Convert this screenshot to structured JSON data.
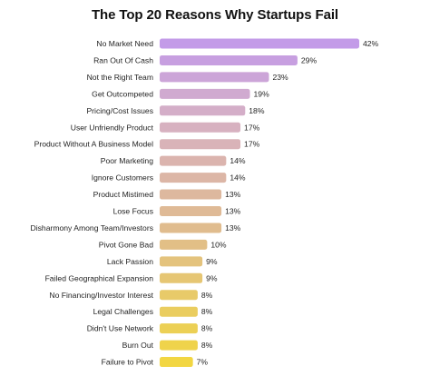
{
  "page": {
    "title": "The Top 20 Reasons Why Startups Fail"
  },
  "chart_data": {
    "type": "bar",
    "orientation": "horizontal",
    "title": "The Top 20 Reasons Why Startups Fail",
    "xlabel": "",
    "ylabel": "",
    "xlim": [
      0,
      42
    ],
    "grid": false,
    "legend": "none",
    "value_format": "percent",
    "categories": [
      "No Market Need",
      "Ran Out Of Cash",
      "Not the Right Team",
      "Get Outcompeted",
      "Pricing/Cost Issues",
      "User Unfriendly Product",
      "Product Without A Business Model",
      "Poor Marketing",
      "Ignore Customers",
      "Product Mistimed",
      "Lose Focus",
      "Disharmony Among Team/Investors",
      "Pivot Gone Bad",
      "Lack Passion",
      "Failed Geographical Expansion",
      "No Financing/Investor Interest",
      "Legal Challenges",
      "Didn't Use Network",
      "Burn Out",
      "Failure to Pivot"
    ],
    "values": [
      42,
      29,
      23,
      19,
      18,
      17,
      17,
      14,
      14,
      13,
      13,
      13,
      10,
      9,
      9,
      8,
      8,
      8,
      8,
      7
    ],
    "value_labels": [
      "42%",
      "29%",
      "23%",
      "19%",
      "18%",
      "17%",
      "17%",
      "14%",
      "14%",
      "13%",
      "13%",
      "13%",
      "10%",
      "9%",
      "9%",
      "8%",
      "8%",
      "8%",
      "8%",
      "7%"
    ],
    "colors": [
      "#c39be8",
      "#c79fe0",
      "#cca5d8",
      "#d0aad0",
      "#d4aec8",
      "#d7b1c0",
      "#d9b3b8",
      "#dbb4ae",
      "#dcb6a6",
      "#ddb89e",
      "#dfba96",
      "#e0bc8e",
      "#e2bf86",
      "#e4c37d",
      "#e6c673",
      "#e8ca69",
      "#eacd5f",
      "#ecd055",
      "#efd34b",
      "#f2d642"
    ]
  }
}
